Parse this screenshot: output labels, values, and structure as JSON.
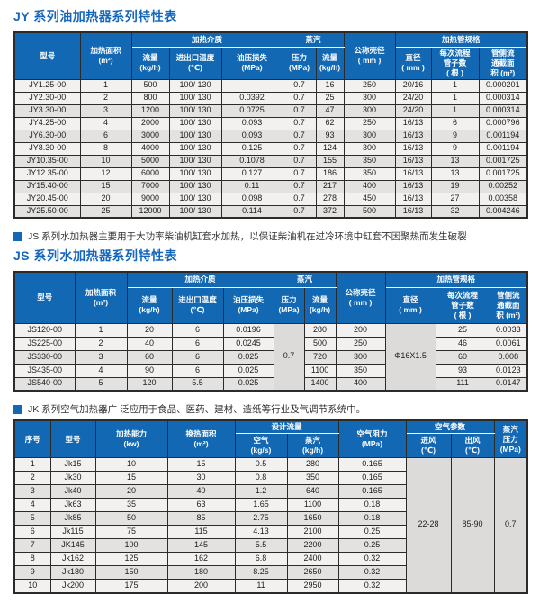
{
  "colors": {
    "header_blue": "#1268b3",
    "title_blue": "#1567bd"
  },
  "jy": {
    "title": "JY 系列油加热器系列特性表",
    "header": {
      "model": "型号",
      "area": "加热面积\n(m²)",
      "medium_group": "加热介质",
      "flow": "流量\n(kg/h)",
      "temp": "进出口温度\n(℃)",
      "oil_loss": "油压损失\n(MPa)",
      "steam_group": "蒸汽",
      "pressure": "压力\n(MPa)",
      "steam_flow": "流量\n(kg/h)",
      "shell": "公称壳径\n( mm )",
      "tube_group": "加热管规格",
      "diameter": "直径\n( mm )",
      "tube_count": "每次流程\n管子数\n( 根 )",
      "cross_section": "管侧流\n通截面\n积 (m²)"
    },
    "rows": [
      [
        "JY1.25-00",
        "1",
        "500",
        "100/ 130",
        "",
        "0.7",
        "16",
        "250",
        "20/16",
        "1",
        "0.000201"
      ],
      [
        "JY2.30-00",
        "2",
        "800",
        "100/ 130",
        "0.0392",
        "0.7",
        "25",
        "300",
        "24/20",
        "1",
        "0.000314"
      ],
      [
        "JY3.30-00",
        "3",
        "1200",
        "100/ 130",
        "0.0725",
        "0.7",
        "47",
        "300",
        "24/20",
        "1",
        "0.000314"
      ],
      [
        "JY4.25-00",
        "4",
        "2000",
        "100/ 130",
        "0.093",
        "0.7",
        "62",
        "250",
        "16/13",
        "6",
        "0.000796"
      ],
      [
        "JY6.30-00",
        "6",
        "3000",
        "100/ 130",
        "0.093",
        "0.7",
        "93",
        "300",
        "16/13",
        "9",
        "0.001194"
      ],
      [
        "JY8.30-00",
        "8",
        "4000",
        "100/ 130",
        "0.125",
        "0.7",
        "124",
        "300",
        "16/13",
        "9",
        "0.001194"
      ],
      [
        "JY10.35-00",
        "10",
        "5000",
        "100/ 130",
        "0.1078",
        "0.7",
        "155",
        "350",
        "16/13",
        "13",
        "0.001725"
      ],
      [
        "JY12.35-00",
        "12",
        "6000",
        "100/ 130",
        "0.127",
        "0.7",
        "186",
        "350",
        "16/13",
        "13",
        "0.001725"
      ],
      [
        "JY15.40-00",
        "15",
        "7000",
        "100/ 130",
        "0.11",
        "0.7",
        "217",
        "400",
        "16/13",
        "19",
        "0.00252"
      ],
      [
        "JY20.45-00",
        "20",
        "9000",
        "100/ 130",
        "0.098",
        "0.7",
        "278",
        "450",
        "16/13",
        "27",
        "0.00358"
      ],
      [
        "JY25.50-00",
        "25",
        "12000",
        "100/ 130",
        "0.114",
        "0.7",
        "372",
        "500",
        "16/13",
        "32",
        "0.004246"
      ]
    ]
  },
  "js": {
    "note": "JS 系列水加热器主要用于大功率柴油机缸套水加热，以保证柴油机在过冷环境中缸套不因聚热而发生破裂",
    "title": "JS 系列水加热器系列特性表",
    "header": {
      "model": "型号",
      "area": "加热面积\n(m²)",
      "medium_group": "加热介质",
      "flow": "流量\n(kg/h)",
      "temp": "进出口温度\n(℃)",
      "oil_loss": "油压损失\n(MPa)",
      "steam_group": "蒸汽",
      "pressure": "压力\n(MPa)",
      "steam_flow": "流量\n(kg/h)",
      "shell": "公称壳径\n( mm )",
      "tube_group": "加热管规格",
      "diameter": "直径\n( mm )",
      "tube_count": "每次流程\n管子数\n( 根 )",
      "cross_section": "管侧流\n通截面\n积 (m²)"
    },
    "rows": [
      [
        "JS120-00",
        "1",
        "20",
        "6",
        "0.0196",
        {
          "v": "0.7",
          "rs": 5
        },
        "280",
        "200",
        {
          "v": "Φ16X1.5",
          "rs": 5
        },
        "25",
        "0.0033"
      ],
      [
        "JS225-00",
        "2",
        "40",
        "6",
        "0.0245",
        "500",
        "250",
        "46",
        "0.0061"
      ],
      [
        "JS330-00",
        "3",
        "60",
        "6",
        "0.025",
        "720",
        "300",
        "60",
        "0.008"
      ],
      [
        "JS435-00",
        "4",
        "90",
        "6",
        "0.025",
        "1100",
        "350",
        "93",
        "0.0123"
      ],
      [
        "JS540-00",
        "5",
        "120",
        "5.5",
        "0.025",
        "1400",
        "400",
        "111",
        "0.0147"
      ]
    ]
  },
  "jk": {
    "note": "JK 系列空气加热器广 泛应用于食品、医药、建材、造纸等行业及气调节系统中。",
    "header": {
      "index": "序号",
      "model": "型号",
      "capacity": "加热能力\n(kw)",
      "exchange_area": "换热面积\n(m²)",
      "flow_group": "设计流量",
      "air": "空气\n(kg/s)",
      "steam": "蒸汽\n(kg/h)",
      "resistance": "空气阻力\n(MPa)",
      "air_group": "空气参数",
      "inlet": "进风\n(℃)",
      "outlet": "出风\n(℃)",
      "steam_pressure": "蒸汽\n压力\n(MPa)"
    },
    "rows": [
      [
        "1",
        "Jk15",
        "10",
        "15",
        "0.5",
        "280",
        "0.165",
        {
          "v": "22-28",
          "rs": 10
        },
        {
          "v": "85-90",
          "rs": 10
        },
        {
          "v": "0.7",
          "rs": 10
        }
      ],
      [
        "2",
        "Jk30",
        "15",
        "30",
        "0.8",
        "350",
        "0.165"
      ],
      [
        "3",
        "Jk40",
        "20",
        "40",
        "1.2",
        "640",
        "0.165"
      ],
      [
        "4",
        "Jk63",
        "35",
        "63",
        "1.65",
        "1100",
        "0.18"
      ],
      [
        "5",
        "Jk85",
        "50",
        "85",
        "2.75",
        "1650",
        "0.18"
      ],
      [
        "6",
        "Jk115",
        "75",
        "115",
        "4.13",
        "2100",
        "0.25"
      ],
      [
        "7",
        "JK145",
        "100",
        "145",
        "5.5",
        "2200",
        "0.25"
      ],
      [
        "8",
        "Jk162",
        "125",
        "162",
        "6.8",
        "2400",
        "0.32"
      ],
      [
        "9",
        "Jk180",
        "150",
        "180",
        "8.25",
        "2650",
        "0.32"
      ],
      [
        "10",
        "Jk200",
        "175",
        "200",
        "11",
        "2950",
        "0.32"
      ]
    ]
  }
}
